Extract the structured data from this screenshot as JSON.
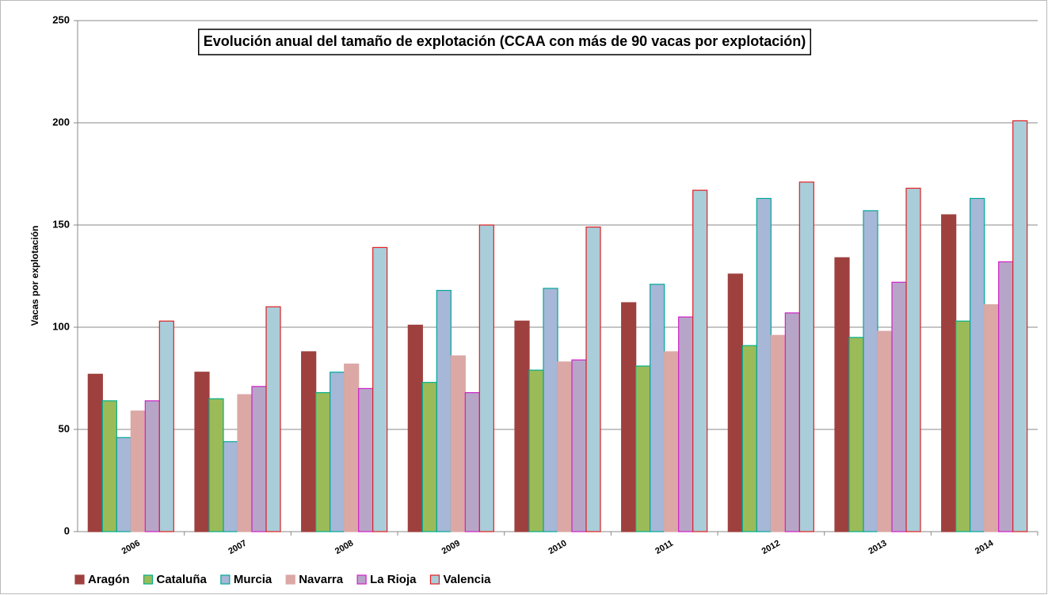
{
  "chart_data": {
    "type": "bar",
    "title": "Evolución anual del tamaño de explotación (CCAA con más de 90 vacas por explotación)",
    "y_label": "Vacas por explotación",
    "categories": [
      "2006",
      "2007",
      "2008",
      "2009",
      "2010",
      "2011",
      "2012",
      "2013",
      "2014"
    ],
    "series": [
      {
        "name": "Aragón",
        "color": "#9e413e",
        "stroke": "#9e413e",
        "values": [
          77,
          78,
          88,
          101,
          103,
          112,
          126,
          134,
          155
        ]
      },
      {
        "name": "Cataluña",
        "color": "#9bbb59",
        "stroke": "#00b08a",
        "values": [
          64,
          65,
          68,
          73,
          79,
          81,
          91,
          95,
          103
        ]
      },
      {
        "name": "Murcia",
        "color": "#a7b7d7",
        "stroke": "#00a898",
        "values": [
          46,
          44,
          78,
          118,
          119,
          121,
          163,
          157,
          163
        ]
      },
      {
        "name": "Navarra",
        "color": "#dba8a6",
        "stroke": "#dba8a6",
        "values": [
          59,
          67,
          82,
          86,
          83,
          88,
          96,
          98,
          111
        ]
      },
      {
        "name": "La Rioja",
        "color": "#b7a5c8",
        "stroke": "#d020c8",
        "values": [
          64,
          71,
          70,
          68,
          84,
          105,
          107,
          122,
          132
        ]
      },
      {
        "name": "Valencia",
        "color": "#a9cdd9",
        "stroke": "#e02020",
        "values": [
          103,
          110,
          139,
          150,
          149,
          167,
          171,
          168,
          201
        ]
      }
    ],
    "ylim": [
      0,
      250
    ],
    "yticks": [
      0,
      50,
      100,
      150,
      200,
      250
    ],
    "grid": true
  }
}
